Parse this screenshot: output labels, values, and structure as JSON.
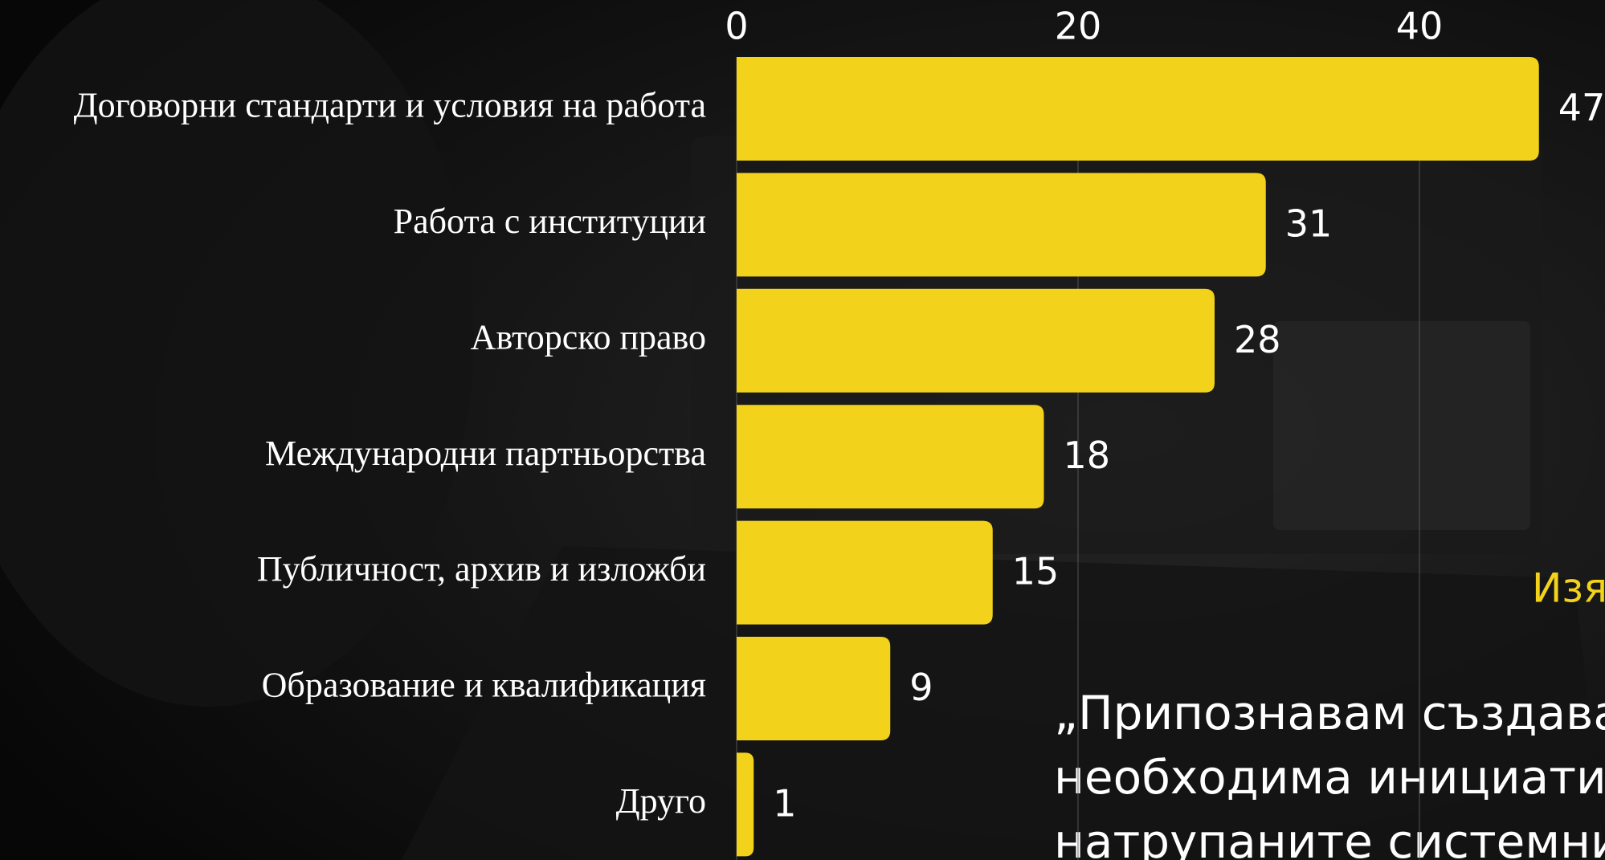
{
  "chart_data": {
    "type": "bar",
    "orientation": "horizontal",
    "categories": [
      "Договорни стандарти и условия на работа",
      "Работа с институции",
      "Авторско право",
      "Международни партньорства",
      "Публичност, архив и изложби",
      "Образование и квалификация",
      "Друго"
    ],
    "values": [
      47,
      31,
      28,
      18,
      15,
      9,
      1
    ],
    "color": "#f2d21b",
    "xlim": [
      0,
      50
    ],
    "xticks": [
      0,
      20,
      40
    ],
    "grid": true
  },
  "annotations": {
    "heading": "Изя",
    "quote": [
      "„Припознавам създаван",
      "необходима инициатив",
      "натрупаните системни п"
    ]
  }
}
